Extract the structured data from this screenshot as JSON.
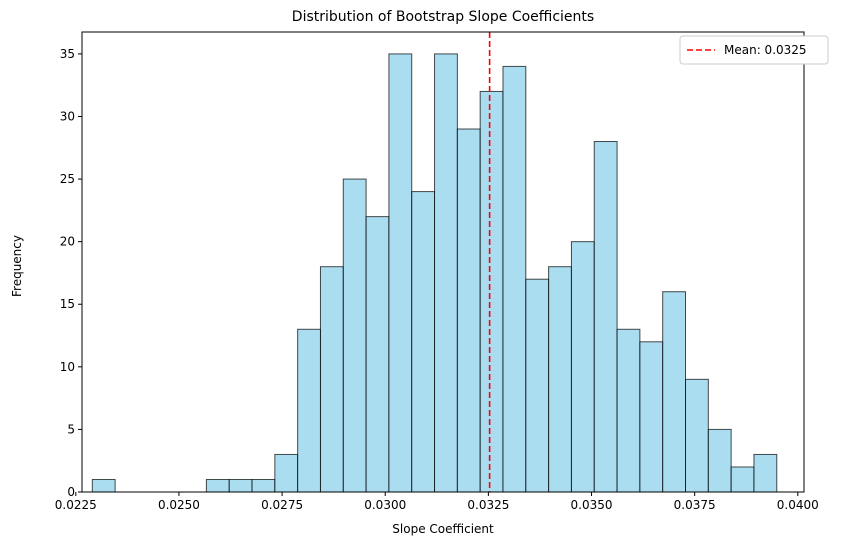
{
  "chart_data": {
    "type": "bar",
    "title": "Distribution of Bootstrap Slope Coefficients",
    "xlabel": "Slope Coefficient",
    "ylabel": "Frequency",
    "xlim": [
      0.02265,
      0.04015
    ],
    "ylim": [
      0,
      36.75
    ],
    "bar_color": "#87CEEB",
    "bar_edge_color": "#000000",
    "bin_start": 0.0229,
    "bin_width": 0.000553,
    "counts": [
      1,
      0,
      0,
      0,
      0,
      1,
      1,
      1,
      3,
      13,
      18,
      25,
      22,
      35,
      24,
      35,
      29,
      32,
      34,
      17,
      18,
      20,
      28,
      13,
      12,
      16,
      9,
      5,
      2,
      3
    ],
    "x_ticks": [
      {
        "value": 0.0225,
        "label": "0.0225"
      },
      {
        "value": 0.025,
        "label": "0.0250"
      },
      {
        "value": 0.0275,
        "label": "0.0275"
      },
      {
        "value": 0.03,
        "label": "0.0300"
      },
      {
        "value": 0.0325,
        "label": "0.0325"
      },
      {
        "value": 0.035,
        "label": "0.0350"
      },
      {
        "value": 0.0375,
        "label": "0.0375"
      },
      {
        "value": 0.04,
        "label": "0.0400"
      }
    ],
    "y_ticks": [
      {
        "value": 0,
        "label": "0"
      },
      {
        "value": 5,
        "label": "5"
      },
      {
        "value": 10,
        "label": "10"
      },
      {
        "value": 15,
        "label": "15"
      },
      {
        "value": 20,
        "label": "20"
      },
      {
        "value": 25,
        "label": "25"
      },
      {
        "value": 30,
        "label": "30"
      },
      {
        "value": 35,
        "label": "35"
      }
    ],
    "mean_line": {
      "value": 0.03253,
      "color": "#FF0000",
      "style": "dashed"
    },
    "legend": {
      "position": "top-right",
      "entries": [
        "Mean: 0.0325"
      ]
    },
    "grid": false
  }
}
